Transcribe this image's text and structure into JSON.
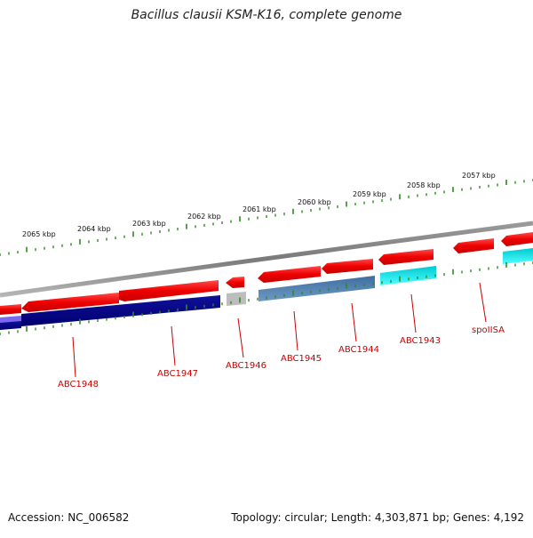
{
  "title": "Bacillus clausii KSM-K16, complete genome",
  "footer": {
    "accession": "Accession: NC_006582",
    "summary": "Topology: circular; Length: 4,303,871 bp; Genes: 4,192"
  },
  "kbp_labels": [
    "2065 kbp",
    "2064 kbp",
    "2063 kbp",
    "2062 kbp",
    "2061 kbp",
    "2060 kbp",
    "2059 kbp",
    "2058 kbp",
    "2057 kbp"
  ],
  "gene_labels": [
    "ABC1948",
    "ABC1947",
    "ABC1946",
    "ABC1945",
    "ABC1944",
    "ABC1943",
    "spoIISA"
  ],
  "colors": {
    "forward_gene": "#ee0000",
    "backbone": "#808080",
    "tick": "#2e8b22",
    "label": "#cc0000",
    "cds_navy": "#000080",
    "cds_steel": "#4a78a8",
    "cds_cyan": "#00e5ee",
    "cds_grey": "#bdbdbd",
    "cds_lavender": "#7b68ee"
  }
}
